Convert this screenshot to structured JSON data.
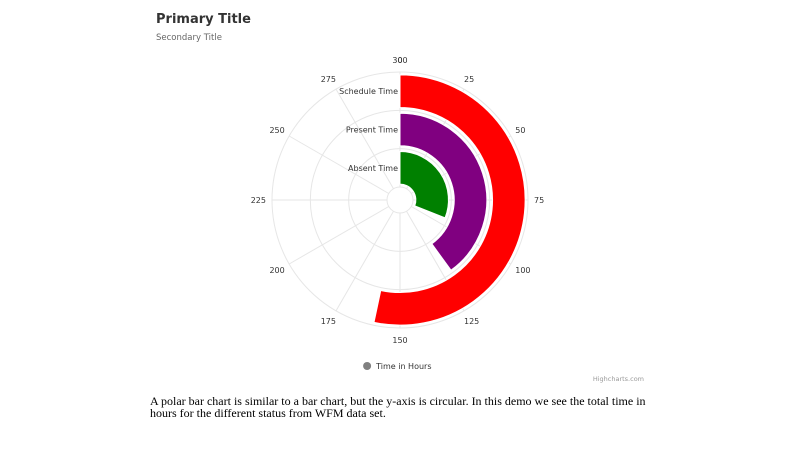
{
  "chart_data": {
    "type": "bar",
    "polar": true,
    "inverted": true,
    "title": "Primary Title",
    "subtitle": "Secondary Title",
    "categories": [
      "Schedule Time",
      "Present Time",
      "Absent Time"
    ],
    "series": [
      {
        "name": "Time in Hours",
        "values": [
          160,
          120,
          93
        ],
        "colors": [
          "#ff0000",
          "#800080",
          "#008000"
        ]
      }
    ],
    "y_ticks": [
      "0",
      "25",
      "50",
      "75",
      "100",
      "125",
      "150",
      "175",
      "200",
      "225",
      "250",
      "275",
      "300"
    ],
    "ylim": [
      0,
      300
    ],
    "legend": "bottom-center",
    "legend_marker_color": "#808080",
    "grid": true
  },
  "credits": "Highcharts.com",
  "description": "A polar bar chart is similar to a bar chart, but the y-axis is circular. In this demo we see the total time in hours for the different status from WFM data set."
}
